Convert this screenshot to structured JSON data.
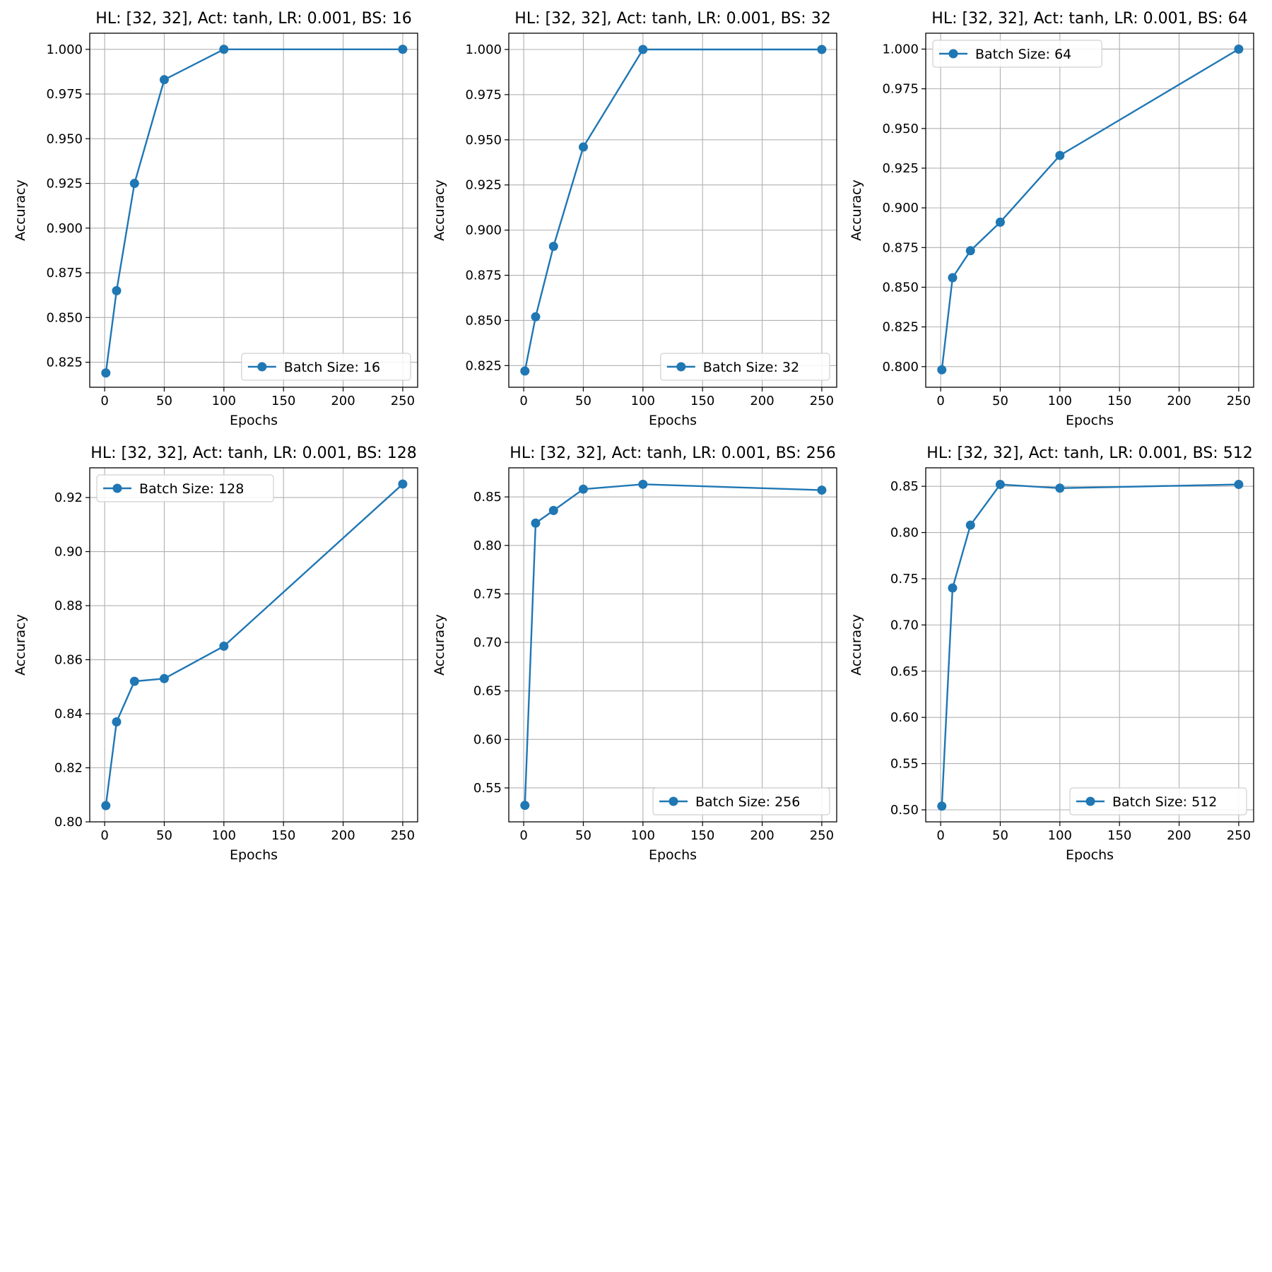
{
  "colors": {
    "series": "#1f77b4",
    "grid": "#b0b0b0"
  },
  "chart_data": [
    {
      "type": "line",
      "title": "HL: [32, 32], Act: tanh, LR: 0.001, BS: 16",
      "xlabel": "Epochs",
      "ylabel": "Accuracy",
      "xlim": [
        -12.5,
        262.5
      ],
      "ylim": [
        0.811,
        1.009
      ],
      "xticks": [
        0,
        50,
        100,
        150,
        200,
        250
      ],
      "yticks": [
        0.825,
        0.85,
        0.875,
        0.9,
        0.925,
        0.95,
        0.975,
        1.0
      ],
      "ytick_labels": [
        "0.825",
        "0.850",
        "0.875",
        "0.900",
        "0.925",
        "0.950",
        "0.975",
        "1.000"
      ],
      "grid": true,
      "legend_position": "lower right",
      "series": [
        {
          "name": "Batch Size: 16",
          "x": [
            1,
            10,
            25,
            50,
            100,
            250
          ],
          "y": [
            0.819,
            0.865,
            0.925,
            0.983,
            1.0,
            1.0
          ]
        }
      ]
    },
    {
      "type": "line",
      "title": "HL: [32, 32], Act: tanh, LR: 0.001, BS: 32",
      "xlabel": "Epochs",
      "ylabel": "Accuracy",
      "xlim": [
        -12.5,
        262.5
      ],
      "ylim": [
        0.813,
        1.009
      ],
      "xticks": [
        0,
        50,
        100,
        150,
        200,
        250
      ],
      "yticks": [
        0.825,
        0.85,
        0.875,
        0.9,
        0.925,
        0.95,
        0.975,
        1.0
      ],
      "ytick_labels": [
        "0.825",
        "0.850",
        "0.875",
        "0.900",
        "0.925",
        "0.950",
        "0.975",
        "1.000"
      ],
      "grid": true,
      "legend_position": "lower right",
      "series": [
        {
          "name": "Batch Size: 32",
          "x": [
            1,
            10,
            25,
            50,
            100,
            250
          ],
          "y": [
            0.822,
            0.852,
            0.891,
            0.946,
            1.0,
            1.0
          ]
        }
      ]
    },
    {
      "type": "line",
      "title": "HL: [32, 32], Act: tanh, LR: 0.001, BS: 64",
      "xlabel": "Epochs",
      "ylabel": "Accuracy",
      "xlim": [
        -12.5,
        262.5
      ],
      "ylim": [
        0.787,
        1.01
      ],
      "xticks": [
        0,
        50,
        100,
        150,
        200,
        250
      ],
      "yticks": [
        0.8,
        0.825,
        0.85,
        0.875,
        0.9,
        0.925,
        0.95,
        0.975,
        1.0
      ],
      "ytick_labels": [
        "0.800",
        "0.825",
        "0.850",
        "0.875",
        "0.900",
        "0.925",
        "0.950",
        "0.975",
        "1.000"
      ],
      "grid": true,
      "legend_position": "upper left",
      "series": [
        {
          "name": "Batch Size: 64",
          "x": [
            1,
            10,
            25,
            50,
            100,
            250
          ],
          "y": [
            0.798,
            0.856,
            0.873,
            0.891,
            0.933,
            1.0
          ]
        }
      ]
    },
    {
      "type": "line",
      "title": "HL: [32, 32], Act: tanh, LR: 0.001, BS: 128",
      "xlabel": "Epochs",
      "ylabel": "Accuracy",
      "xlim": [
        -12.5,
        262.5
      ],
      "ylim": [
        0.8,
        0.931
      ],
      "xticks": [
        0,
        50,
        100,
        150,
        200,
        250
      ],
      "yticks": [
        0.8,
        0.82,
        0.84,
        0.86,
        0.88,
        0.9,
        0.92
      ],
      "ytick_labels": [
        "0.80",
        "0.82",
        "0.84",
        "0.86",
        "0.88",
        "0.90",
        "0.92"
      ],
      "grid": true,
      "legend_position": "upper left",
      "series": [
        {
          "name": "Batch Size: 128",
          "x": [
            1,
            10,
            25,
            50,
            100,
            250
          ],
          "y": [
            0.806,
            0.837,
            0.852,
            0.853,
            0.865,
            0.925
          ]
        }
      ]
    },
    {
      "type": "line",
      "title": "HL: [32, 32], Act: tanh, LR: 0.001, BS: 256",
      "xlabel": "Epochs",
      "ylabel": "Accuracy",
      "xlim": [
        -12.5,
        262.5
      ],
      "ylim": [
        0.515,
        0.88
      ],
      "xticks": [
        0,
        50,
        100,
        150,
        200,
        250
      ],
      "yticks": [
        0.55,
        0.6,
        0.65,
        0.7,
        0.75,
        0.8,
        0.85
      ],
      "ytick_labels": [
        "0.55",
        "0.60",
        "0.65",
        "0.70",
        "0.75",
        "0.80",
        "0.85"
      ],
      "grid": true,
      "legend_position": "lower right",
      "series": [
        {
          "name": "Batch Size: 256",
          "x": [
            1,
            10,
            25,
            50,
            100,
            250
          ],
          "y": [
            0.532,
            0.823,
            0.836,
            0.858,
            0.863,
            0.857
          ]
        }
      ]
    },
    {
      "type": "line",
      "title": "HL: [32, 32], Act: tanh, LR: 0.001, BS: 512",
      "xlabel": "Epochs",
      "ylabel": "Accuracy",
      "xlim": [
        -12.5,
        262.5
      ],
      "ylim": [
        0.487,
        0.87
      ],
      "xticks": [
        0,
        50,
        100,
        150,
        200,
        250
      ],
      "yticks": [
        0.5,
        0.55,
        0.6,
        0.65,
        0.7,
        0.75,
        0.8,
        0.85
      ],
      "ytick_labels": [
        "0.50",
        "0.55",
        "0.60",
        "0.65",
        "0.70",
        "0.75",
        "0.80",
        "0.85"
      ],
      "grid": true,
      "legend_position": "lower right",
      "series": [
        {
          "name": "Batch Size: 512",
          "x": [
            1,
            10,
            25,
            50,
            100,
            250
          ],
          "y": [
            0.504,
            0.74,
            0.808,
            0.852,
            0.848,
            0.852
          ]
        }
      ]
    }
  ]
}
